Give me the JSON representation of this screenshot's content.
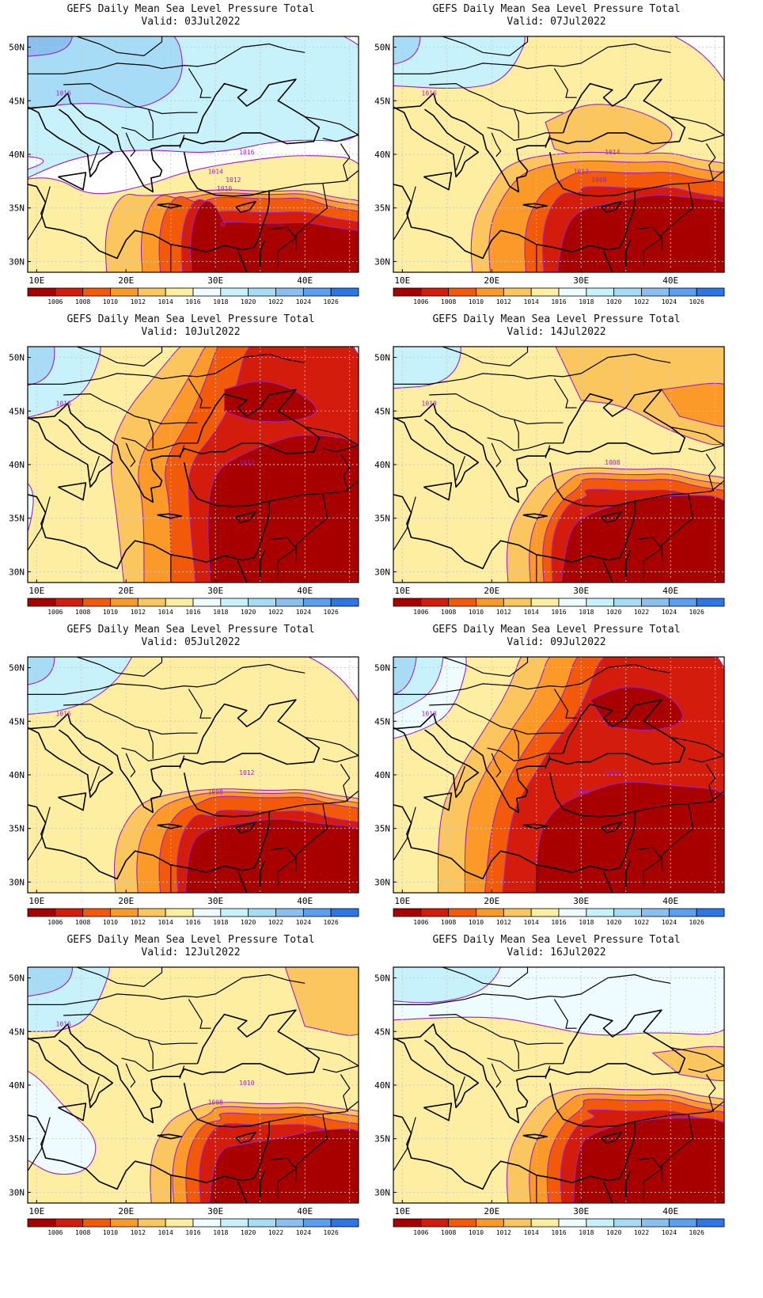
{
  "colors": {
    "levels": [
      "#a80000",
      "#d41c0c",
      "#f25a0a",
      "#fb9a29",
      "#fcc65f",
      "#fdeea2",
      "#eefcff",
      "#c7f2fb",
      "#a6dcf5",
      "#8ac0f0",
      "#5a9ff0",
      "#2c76e6"
    ],
    "contour": "#a020c0",
    "grid": "#c8c8c8"
  },
  "colorbar": {
    "labels": [
      "1006",
      "1008",
      "1010",
      "1012",
      "1014",
      "1016",
      "1018",
      "1020",
      "1022",
      "1024",
      "1026"
    ]
  },
  "axes": {
    "lon_labels": [
      "10E",
      "20E",
      "30E",
      "40E"
    ],
    "lat_labels": [
      "50N",
      "45N",
      "40N",
      "35N",
      "30N"
    ],
    "lon_range": [
      9,
      46
    ],
    "lat_range": [
      29,
      51
    ]
  },
  "panels": [
    {
      "title": "GEFS Daily Mean Sea Level Pressure Total",
      "valid": "Valid: 03Jul2022",
      "contour_labels": [
        "1016",
        "1016",
        "1014",
        "1012",
        "1010"
      ],
      "field": "cool_north"
    },
    {
      "title": "GEFS Daily Mean Sea Level Pressure Total",
      "valid": "Valid: 10Jul2022",
      "contour_labels": [
        "1016",
        "1012"
      ],
      "field": "hot_north"
    },
    {
      "title": "GEFS Daily Mean Sea Level Pressure Total",
      "valid": "Valid: 05Jul2022",
      "contour_labels": [
        "1016",
        "1012",
        "1008"
      ],
      "field": "mild"
    },
    {
      "title": "GEFS Daily Mean Sea Level Pressure Total",
      "valid": "Valid: 12Jul2022",
      "contour_labels": [
        "1016",
        "1010",
        "1008"
      ],
      "field": "mild_west_high"
    },
    {
      "title": "GEFS Daily Mean Sea Level Pressure Total",
      "valid": "Valid: 07Jul2022",
      "contour_labels": [
        "1016",
        "1014",
        "1012",
        "1008"
      ],
      "field": "warm"
    },
    {
      "title": "GEFS Daily Mean Sea Level Pressure Total",
      "valid": "Valid: 14Jul2022",
      "contour_labels": [
        "1010",
        "1008"
      ],
      "field": "warm_ne"
    },
    {
      "title": "GEFS Daily Mean Sea Level Pressure Total",
      "valid": "Valid: 09Jul2022",
      "contour_labels": [
        "1018",
        "1008",
        "1008"
      ],
      "field": "very_hot"
    },
    {
      "title": "GEFS Daily Mean Sea Level Pressure Total",
      "valid": "Valid: 16Jul2022",
      "contour_labels": [],
      "field": "mild_late"
    }
  ]
}
